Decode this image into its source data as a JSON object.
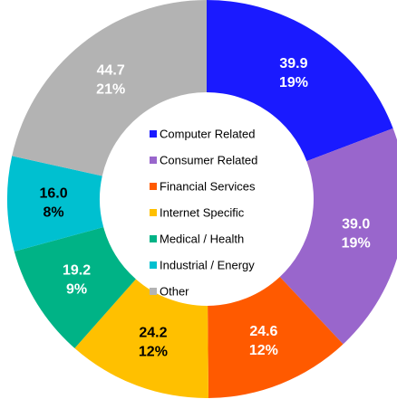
{
  "chart_data": {
    "type": "donut",
    "categories": [
      "Computer Related",
      "Consumer Related",
      "Financial Services",
      "Internet Specific",
      "Medical / Health",
      "Industrial / Energy",
      "Other"
    ],
    "values": [
      39.9,
      39.0,
      24.6,
      24.2,
      19.2,
      16.0,
      44.7
    ],
    "value_labels": [
      "39.9",
      "39.0",
      "24.6",
      "24.2",
      "19.2",
      "16.0",
      "44.7"
    ],
    "percents": [
      19,
      19,
      12,
      12,
      9,
      8,
      21
    ],
    "percent_labels": [
      "19%",
      "19%",
      "12%",
      "12%",
      "9%",
      "8%",
      "21%"
    ],
    "colors": [
      "#1a1aff",
      "#9966cc",
      "#ff5a00",
      "#ffc000",
      "#00b386",
      "#00c0d0",
      "#b3b3b3"
    ],
    "label_colors": [
      "#ffffff",
      "#ffffff",
      "#ffffff",
      "#000000",
      "#ffffff",
      "#000000",
      "#ffffff"
    ],
    "legend": "center"
  }
}
